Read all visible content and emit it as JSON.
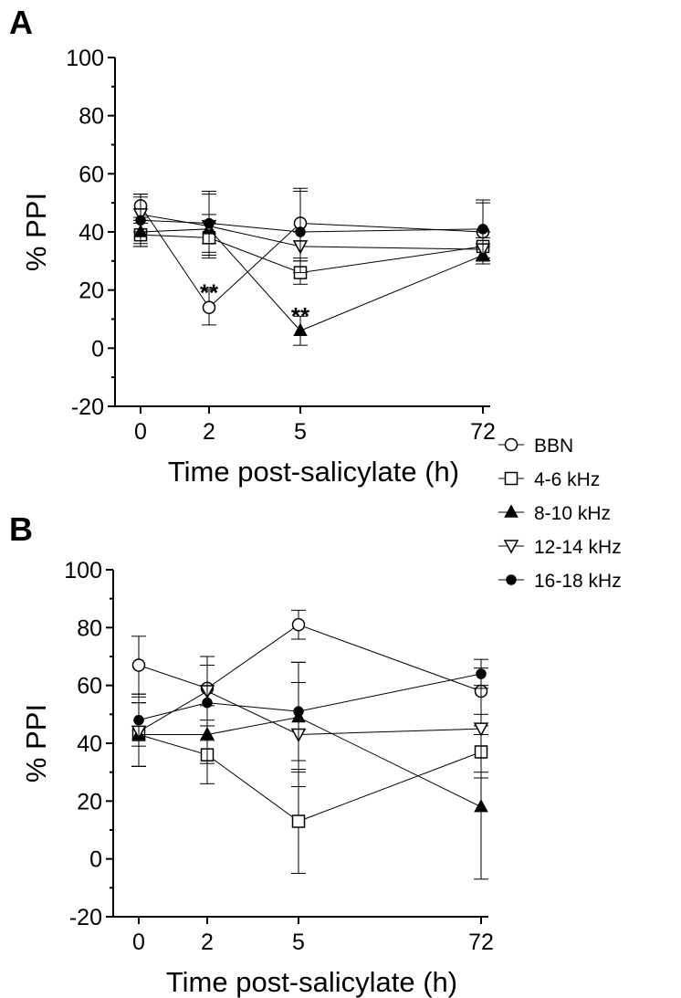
{
  "chart_data": [
    {
      "panel_label": "A",
      "type": "line",
      "categories": [
        "0",
        "2",
        "5",
        "72"
      ],
      "xlabel": "Time post-salicylate (h)",
      "ylabel": "% PPI",
      "ylim": [
        -20,
        100
      ],
      "yticks": [
        -20,
        0,
        20,
        40,
        60,
        80,
        100
      ],
      "grid": false,
      "series": [
        {
          "name": "BBN",
          "marker": "circle-open",
          "values": [
            49,
            14,
            43,
            40
          ],
          "errors": [
            4,
            6,
            12,
            10
          ]
        },
        {
          "name": "4-6 kHz",
          "marker": "square-open",
          "values": [
            39,
            38,
            26,
            35
          ],
          "errors": [
            4,
            5,
            4,
            5
          ]
        },
        {
          "name": "8-10 kHz",
          "marker": "triangle-up-filled",
          "values": [
            40,
            41,
            6,
            32
          ],
          "errors": [
            4,
            5,
            5,
            3
          ]
        },
        {
          "name": "12-14 kHz",
          "marker": "triangle-down-open",
          "values": [
            46,
            42,
            35,
            34
          ],
          "errors": [
            6,
            11,
            5,
            4
          ]
        },
        {
          "name": "16-18 kHz",
          "marker": "circle-filled",
          "values": [
            44,
            43,
            40,
            41
          ],
          "errors": [
            9,
            11,
            14,
            10
          ]
        }
      ],
      "annotations": [
        {
          "text": "**",
          "x": "2",
          "y": 22
        },
        {
          "text": "**",
          "x": "5",
          "y": 14
        }
      ]
    },
    {
      "panel_label": "B",
      "type": "line",
      "categories": [
        "0",
        "2",
        "5",
        "72"
      ],
      "xlabel": "Time post-salicylate (h)",
      "ylabel": "% PPI",
      "ylim": [
        -20,
        100
      ],
      "yticks": [
        -20,
        0,
        20,
        40,
        60,
        80,
        100
      ],
      "grid": false,
      "series": [
        {
          "name": "BBN",
          "marker": "circle-open",
          "values": [
            67,
            59,
            81,
            58
          ],
          "errors": [
            10,
            11,
            5,
            8
          ]
        },
        {
          "name": "4-6 kHz",
          "marker": "square-open",
          "values": [
            43,
            36,
            13,
            37
          ],
          "errors": [
            11,
            10,
            18,
            9
          ]
        },
        {
          "name": "8-10 kHz",
          "marker": "triangle-up-filled",
          "values": [
            43,
            43,
            49,
            18
          ],
          "errors": [
            11,
            10,
            19,
            25
          ]
        },
        {
          "name": "12-14 kHz",
          "marker": "triangle-down-open",
          "values": [
            44,
            58,
            43,
            45
          ],
          "errors": [
            12,
            12,
            18,
            15
          ]
        },
        {
          "name": "16-18 kHz",
          "marker": "circle-filled",
          "values": [
            48,
            54,
            51,
            64
          ],
          "errors": [
            9,
            13,
            17,
            5
          ]
        }
      ],
      "annotations": []
    }
  ],
  "legend": {
    "placement": "right",
    "entries": [
      {
        "label": "BBN",
        "marker": "circle-open"
      },
      {
        "label": "4-6 kHz",
        "marker": "square-open"
      },
      {
        "label": "8-10 kHz",
        "marker": "triangle-up-filled"
      },
      {
        "label": "12-14 kHz",
        "marker": "triangle-down-open"
      },
      {
        "label": "16-18 kHz",
        "marker": "circle-filled"
      }
    ]
  },
  "colors": {
    "ink": "#000000",
    "background": "#ffffff"
  }
}
